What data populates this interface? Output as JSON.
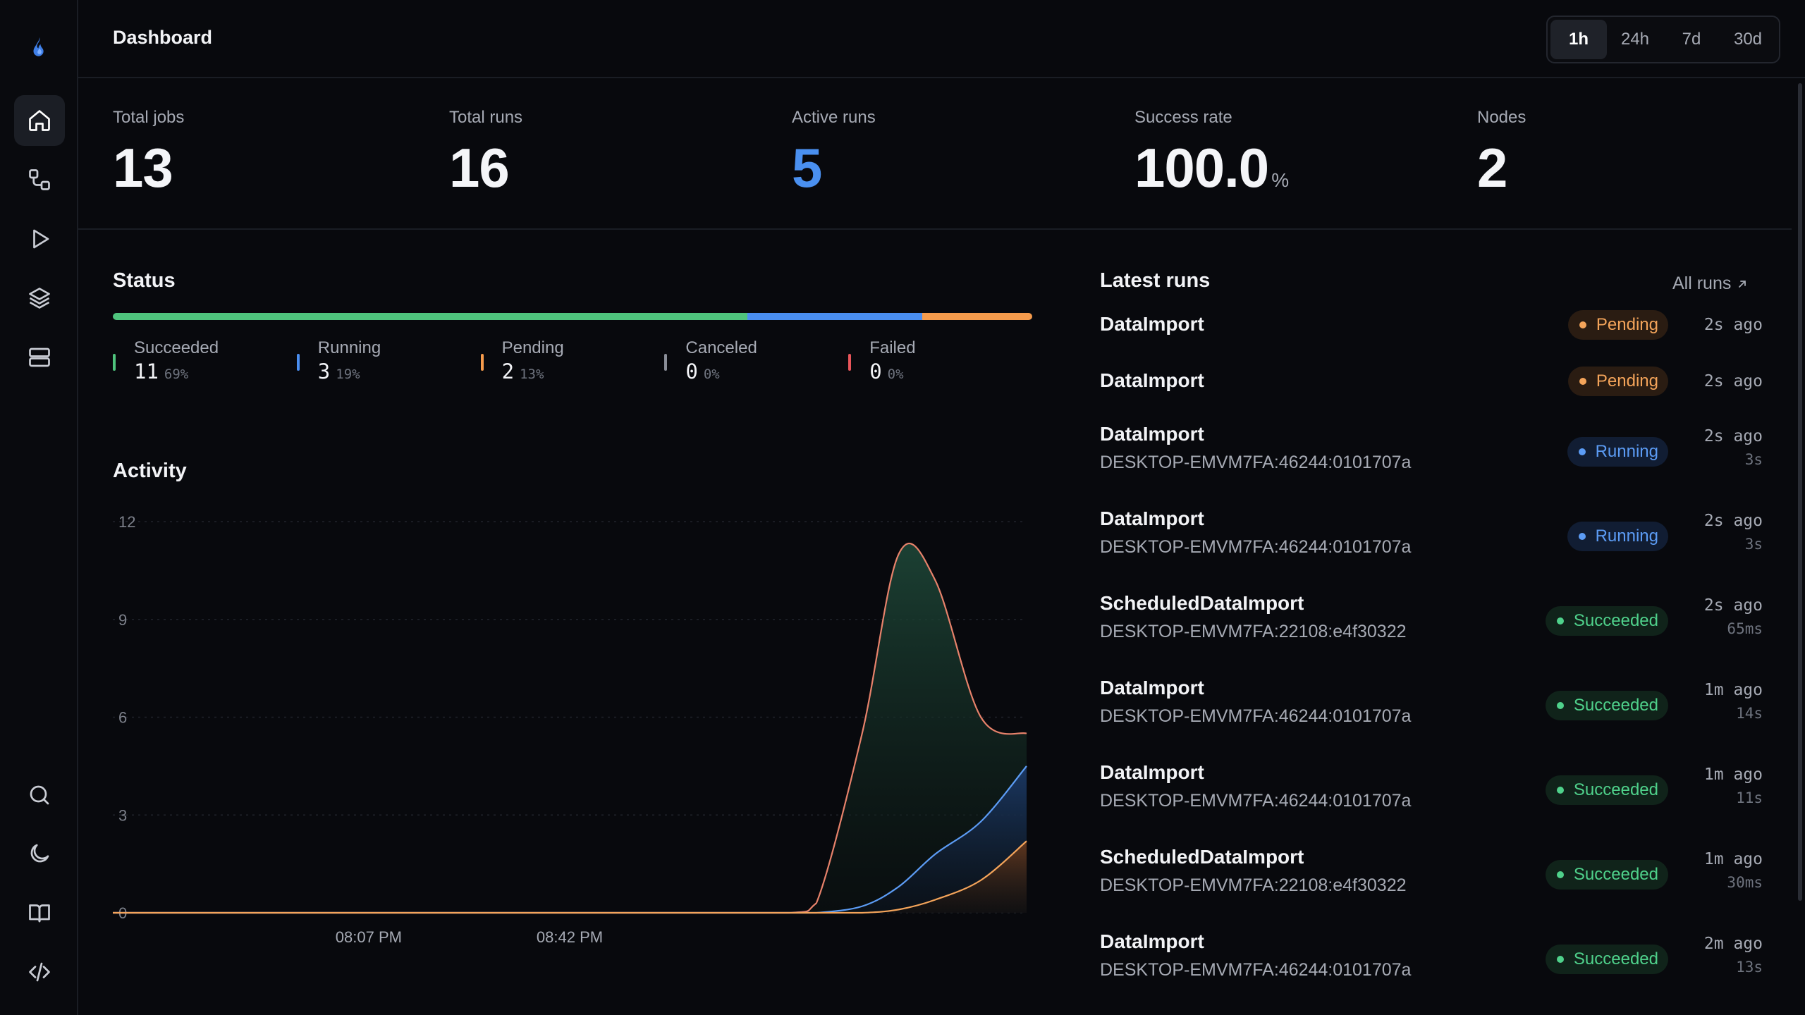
{
  "app": {
    "logo_icon": "flame-icon",
    "page_title": "Dashboard"
  },
  "sidebar": {
    "top": [
      {
        "icon": "home-icon",
        "active": true
      },
      {
        "icon": "workflow-icon",
        "active": false
      },
      {
        "icon": "play-icon",
        "active": false
      },
      {
        "icon": "layers-icon",
        "active": false
      },
      {
        "icon": "server-icon",
        "active": false
      }
    ],
    "bottom": [
      {
        "icon": "search-icon"
      },
      {
        "icon": "moon-icon"
      },
      {
        "icon": "book-icon"
      },
      {
        "icon": "code-icon"
      }
    ]
  },
  "time_range": {
    "options": [
      "1h",
      "24h",
      "7d",
      "30d"
    ],
    "selected": "1h"
  },
  "stats": {
    "total_jobs": {
      "label": "Total jobs",
      "value": "13"
    },
    "total_runs": {
      "label": "Total runs",
      "value": "16"
    },
    "active_runs": {
      "label": "Active runs",
      "value": "5"
    },
    "success_rate": {
      "label": "Success rate",
      "value": "100.0",
      "unit": "%"
    },
    "nodes": {
      "label": "Nodes",
      "value": "2"
    }
  },
  "status": {
    "title": "Status",
    "items": [
      {
        "name": "Succeeded",
        "count": "11",
        "pct": "69%",
        "share": 0.69,
        "color": "#4fc47d"
      },
      {
        "name": "Running",
        "count": "3",
        "pct": "19%",
        "share": 0.19,
        "color": "#4a8ef0"
      },
      {
        "name": "Pending",
        "count": "2",
        "pct": "13%",
        "share": 0.12,
        "color": "#f59b4c"
      },
      {
        "name": "Canceled",
        "count": "0",
        "pct": "0%",
        "share": 0,
        "color": "#8a8e98"
      },
      {
        "name": "Failed",
        "count": "0",
        "pct": "0%",
        "share": 0,
        "color": "#e8555a"
      }
    ]
  },
  "activity": {
    "title": "Activity",
    "chart_data": {
      "type": "area",
      "ylim": [
        0,
        12
      ],
      "y_ticks": [
        "0",
        "3",
        "6",
        "9",
        "12"
      ],
      "x_ticks": [
        "08:07 PM",
        "08:42 PM"
      ],
      "x": [
        0.0,
        0.2,
        0.4,
        0.6,
        0.74,
        0.77,
        0.82,
        0.86,
        0.9,
        0.95,
        1.0
      ],
      "series": [
        {
          "values": [
            0,
            0,
            0,
            0,
            0,
            0.3,
            5.5,
            11.0,
            10.2,
            6.0,
            5.5
          ],
          "color": "#e7826b"
        },
        {
          "values": [
            0,
            0,
            0,
            0,
            0,
            0,
            0.2,
            0.8,
            1.8,
            2.8,
            4.5
          ],
          "color": "#5c9cf5"
        },
        {
          "values": [
            0,
            0,
            0,
            0,
            0,
            0,
            0,
            0.1,
            0.4,
            1.0,
            2.2
          ],
          "color": "#f4a45a"
        }
      ],
      "grid": true
    }
  },
  "latest_runs": {
    "title": "Latest runs",
    "all_runs_label": "All runs",
    "rows": [
      {
        "name": "DataImport",
        "node": "",
        "status": "Pending",
        "kind": "pending",
        "ago": "2s ago",
        "duration": ""
      },
      {
        "name": "DataImport",
        "node": "",
        "status": "Pending",
        "kind": "pending",
        "ago": "2s ago",
        "duration": ""
      },
      {
        "name": "DataImport",
        "node": "DESKTOP-EMVM7FA:46244:0101707a",
        "status": "Running",
        "kind": "running",
        "ago": "2s ago",
        "duration": "3s"
      },
      {
        "name": "DataImport",
        "node": "DESKTOP-EMVM7FA:46244:0101707a",
        "status": "Running",
        "kind": "running",
        "ago": "2s ago",
        "duration": "3s"
      },
      {
        "name": "ScheduledDataImport",
        "node": "DESKTOP-EMVM7FA:22108:e4f30322",
        "status": "Succeeded",
        "kind": "succeeded",
        "ago": "2s ago",
        "duration": "65ms"
      },
      {
        "name": "DataImport",
        "node": "DESKTOP-EMVM7FA:46244:0101707a",
        "status": "Succeeded",
        "kind": "succeeded",
        "ago": "1m ago",
        "duration": "14s"
      },
      {
        "name": "DataImport",
        "node": "DESKTOP-EMVM7FA:46244:0101707a",
        "status": "Succeeded",
        "kind": "succeeded",
        "ago": "1m ago",
        "duration": "11s"
      },
      {
        "name": "ScheduledDataImport",
        "node": "DESKTOP-EMVM7FA:22108:e4f30322",
        "status": "Succeeded",
        "kind": "succeeded",
        "ago": "1m ago",
        "duration": "30ms"
      },
      {
        "name": "DataImport",
        "node": "DESKTOP-EMVM7FA:46244:0101707a",
        "status": "Succeeded",
        "kind": "succeeded",
        "ago": "2m ago",
        "duration": "13s"
      }
    ]
  }
}
